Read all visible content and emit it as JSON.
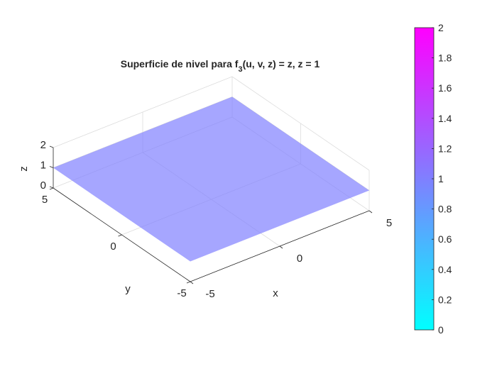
{
  "chart_data": {
    "type": "surface",
    "title": "Superficie de nivel para f",
    "title_sub": "3",
    "title_rest": "(u, v, z) = z, z = 1",
    "xlabel": "x",
    "ylabel": "y",
    "zlabel": "z",
    "xlim": [
      -5,
      5
    ],
    "ylim": [
      -5,
      5
    ],
    "zlim": [
      0,
      2
    ],
    "xticks": [
      "-5",
      "0",
      "5"
    ],
    "yticks": [
      "-5",
      "0",
      "5"
    ],
    "zticks": [
      "0",
      "1",
      "2"
    ],
    "surface": {
      "z": 1,
      "x": [
        -5,
        5
      ],
      "y": [
        -5,
        5
      ],
      "color": "#8080ff",
      "alpha": 0.7
    },
    "grid": true,
    "colorbar": {
      "limits": [
        0,
        2
      ],
      "ticks": [
        "0",
        "0.2",
        "0.4",
        "0.6",
        "0.8",
        "1",
        "1.2",
        "1.4",
        "1.6",
        "1.8",
        "2"
      ],
      "colormap": [
        "#00ffff",
        "#ff00ff"
      ],
      "placement": "right"
    }
  }
}
